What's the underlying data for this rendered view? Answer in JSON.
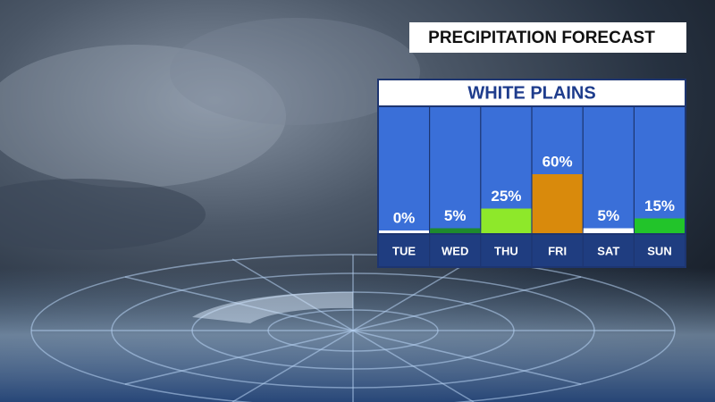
{
  "chart_data": {
    "type": "bar",
    "title": "PRECIPITATION FORECAST",
    "subtitle": "WHITE PLAINS",
    "categories": [
      "TUE",
      "WED",
      "THU",
      "FRI",
      "SAT",
      "SUN"
    ],
    "values": [
      0,
      5,
      25,
      60,
      5,
      15
    ],
    "value_labels": [
      "0%",
      "5%",
      "25%",
      "60%",
      "5%",
      "15%"
    ],
    "colors": [
      "#ffffff",
      "#1e8a2e",
      "#8ee82a",
      "#d98a0c",
      "#ffffff",
      "#22c42a"
    ]
  }
}
